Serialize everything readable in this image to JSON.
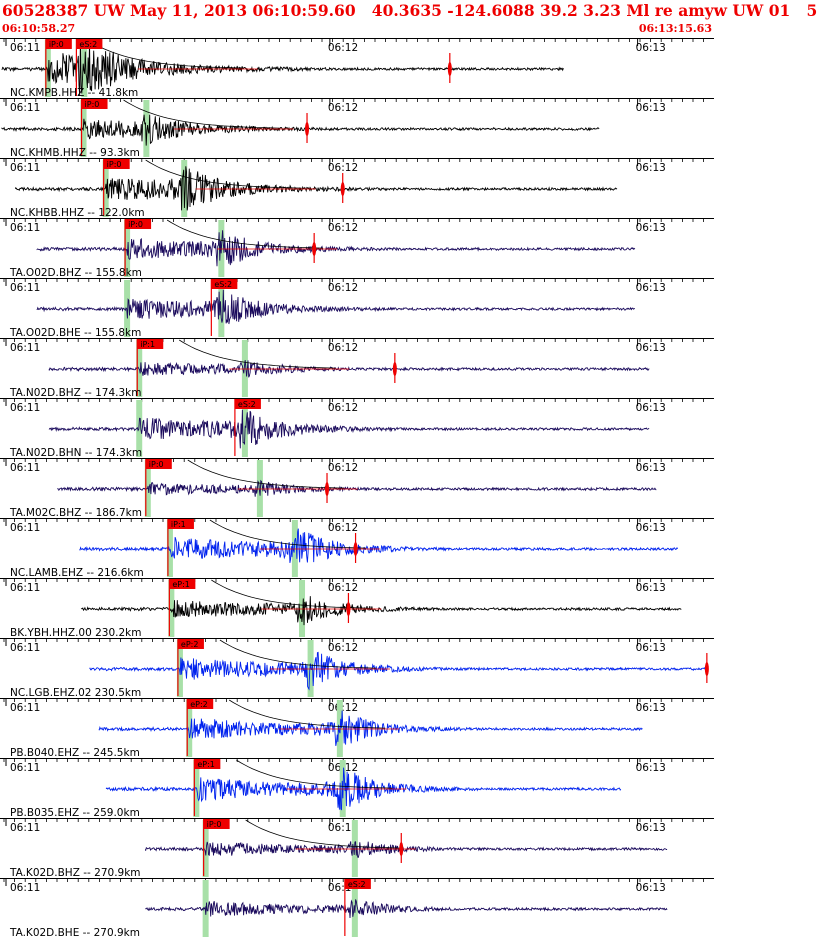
{
  "header": {
    "title": "60528387 UW May 11, 2013 06:10:59.60   40.3635 -124.6088 39.2 3.23 Ml re amyw UW 01   5",
    "time_start": "06:10:58.27",
    "time_end": "06:13:15.63",
    "title_color": "#ee0000"
  },
  "time_labels": [
    "06:11",
    "06:12",
    "06:13"
  ],
  "colors": {
    "black": "#000000",
    "navy": "#1a0a5c",
    "blue": "#0022ee",
    "pick_box": "#ee0000",
    "pick_window": "#a8e0a8",
    "grid": "#000000"
  },
  "traces": [
    {
      "label": "NC.KMPB.HHZ -- 41.8km",
      "color": "black",
      "p_pick": "iP:0",
      "s_pick": "eS:2",
      "p_t": 0.067,
      "s_t": 0.121,
      "s_win_t": 0.118,
      "end_t": 0.79,
      "amp": 1.0,
      "style": "short",
      "marker_t": 0.63
    },
    {
      "label": "NC.KHMB.HHZ -- 93.3km",
      "color": "black",
      "p_pick": "iP:0",
      "s_pick": "",
      "p_t": 0.117,
      "s_t": 0.205,
      "s_win_t": 0.205,
      "end_t": 0.84,
      "amp": 0.7,
      "style": "mid",
      "marker_t": 0.43
    },
    {
      "label": "NC.KHBB.HHZ -- 122.0km",
      "color": "black",
      "p_pick": "iP:0",
      "s_pick": "",
      "p_t": 0.148,
      "s_t": 0.258,
      "s_win_t": 0.258,
      "end_t": 0.865,
      "amp": 0.9,
      "style": "mid",
      "marker_t": 0.48
    },
    {
      "label": "TA.O02D.BHZ -- 155.8km",
      "color": "navy",
      "p_pick": "iP:0",
      "s_pick": "",
      "p_t": 0.178,
      "s_t": 0.31,
      "s_win_t": 0.31,
      "end_t": 0.89,
      "amp": 0.8,
      "style": "long",
      "marker_t": 0.44
    },
    {
      "label": "TA.O02D.BHE -- 155.8km",
      "color": "navy",
      "p_pick": "",
      "s_pick": "eS:2",
      "p_t": 0.178,
      "s_t": 0.31,
      "s_win_t": 0.31,
      "end_t": 0.89,
      "amp": 0.8,
      "style": "long",
      "marker_t": 0
    },
    {
      "label": "TA.N02D.BHZ -- 174.3km",
      "color": "navy",
      "p_pick": "iP:1",
      "s_pick": "",
      "p_t": 0.195,
      "s_t": 0.343,
      "s_win_t": 0.343,
      "end_t": 0.91,
      "amp": 0.55,
      "style": "mid",
      "marker_t": 0.553
    },
    {
      "label": "TA.N02D.BHN -- 174.3km",
      "color": "navy",
      "p_pick": "",
      "s_pick": "eS:2",
      "p_t": 0.195,
      "s_t": 0.343,
      "s_win_t": 0.343,
      "end_t": 0.91,
      "amp": 0.85,
      "style": "mid",
      "marker_t": 0
    },
    {
      "label": "TA.M02C.BHZ -- 186.7km",
      "color": "navy",
      "p_pick": "iP:0",
      "s_pick": "",
      "p_t": 0.207,
      "s_t": 0.364,
      "s_win_t": 0.364,
      "end_t": 0.92,
      "amp": 0.5,
      "style": "long",
      "marker_t": 0.458
    },
    {
      "label": "NC.LAMB.EHZ -- 216.6km",
      "color": "blue",
      "p_pick": "iP:1",
      "s_pick": "",
      "p_t": 0.238,
      "s_t": 0.413,
      "s_win_t": 0.413,
      "end_t": 0.95,
      "amp": 0.9,
      "style": "mid",
      "marker_t": 0.498
    },
    {
      "label": "BK.YBH.HHZ.00 230.2km",
      "color": "black",
      "p_pick": "eP:1",
      "s_pick": "",
      "p_t": 0.24,
      "s_t": 0.423,
      "s_win_t": 0.423,
      "end_t": 0.955,
      "amp": 0.75,
      "style": "long",
      "marker_t": 0.488
    },
    {
      "label": "NC.LGB.EHZ.02 230.5km",
      "color": "blue",
      "p_pick": "eP:2",
      "s_pick": "",
      "p_t": 0.252,
      "s_t": 0.435,
      "s_win_t": 0.435,
      "end_t": 0.99,
      "amp": 0.85,
      "style": "mid",
      "marker_t": 0.99
    },
    {
      "label": "PB.B040.EHZ -- 245.5km",
      "color": "blue",
      "p_pick": "eP:2",
      "s_pick": "",
      "p_t": 0.265,
      "s_t": 0.476,
      "s_win_t": 0.476,
      "end_t": 0.9,
      "amp": 0.85,
      "style": "long",
      "marker_t": 0
    },
    {
      "label": "PB.B035.EHZ -- 259.0km",
      "color": "blue",
      "p_pick": "eP:1",
      "s_pick": "",
      "p_t": 0.275,
      "s_t": 0.48,
      "s_win_t": 0.48,
      "end_t": 0.87,
      "amp": 0.9,
      "style": "long",
      "marker_t": 0
    },
    {
      "label": "TA.K02D.BHZ -- 270.9km",
      "color": "navy",
      "p_pick": "iP:0",
      "s_pick": "",
      "p_t": 0.288,
      "s_t": 0.497,
      "s_win_t": 0.497,
      "end_t": 0.935,
      "amp": 0.6,
      "style": "short",
      "marker_t": 0.562
    },
    {
      "label": "TA.K02D.BHE -- 270.9km",
      "color": "navy",
      "p_pick": "",
      "s_pick": "eS:2",
      "p_t": 0.288,
      "s_t": 0.497,
      "s_win_t": 0.497,
      "end_t": 0.935,
      "amp": 0.6,
      "style": "short",
      "marker_t": 0
    }
  ]
}
